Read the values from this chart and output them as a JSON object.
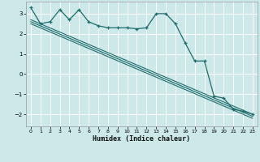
{
  "title": "",
  "xlabel": "Humidex (Indice chaleur)",
  "ylabel": "",
  "background_color": "#cce8e8",
  "grid_color": "#ffffff",
  "line_color": "#1e6b6b",
  "xlim": [
    -0.5,
    23.5
  ],
  "ylim": [
    -2.6,
    3.6
  ],
  "yticks": [
    -2,
    -1,
    0,
    1,
    2,
    3
  ],
  "xticks": [
    0,
    1,
    2,
    3,
    4,
    5,
    6,
    7,
    8,
    9,
    10,
    11,
    12,
    13,
    14,
    15,
    16,
    17,
    18,
    19,
    20,
    21,
    22,
    23
  ],
  "line1_x": [
    0,
    1,
    2,
    3,
    4,
    5,
    6,
    7,
    8,
    9,
    10,
    11,
    12,
    13,
    14,
    15,
    16,
    17,
    18,
    19,
    20,
    21,
    22,
    23
  ],
  "line1_y": [
    3.3,
    2.5,
    2.6,
    3.2,
    2.7,
    3.2,
    2.6,
    2.4,
    2.3,
    2.3,
    2.3,
    2.25,
    2.3,
    3.0,
    3.0,
    2.5,
    1.55,
    0.65,
    0.65,
    -1.1,
    -1.2,
    -1.75,
    -1.85,
    -2.0
  ],
  "line2_x": [
    0,
    23
  ],
  "line2_y": [
    2.7,
    -2.0
  ],
  "line3_x": [
    0,
    23
  ],
  "line3_y": [
    2.6,
    -2.1
  ],
  "line4_x": [
    0,
    23
  ],
  "line4_y": [
    2.5,
    -2.2
  ]
}
